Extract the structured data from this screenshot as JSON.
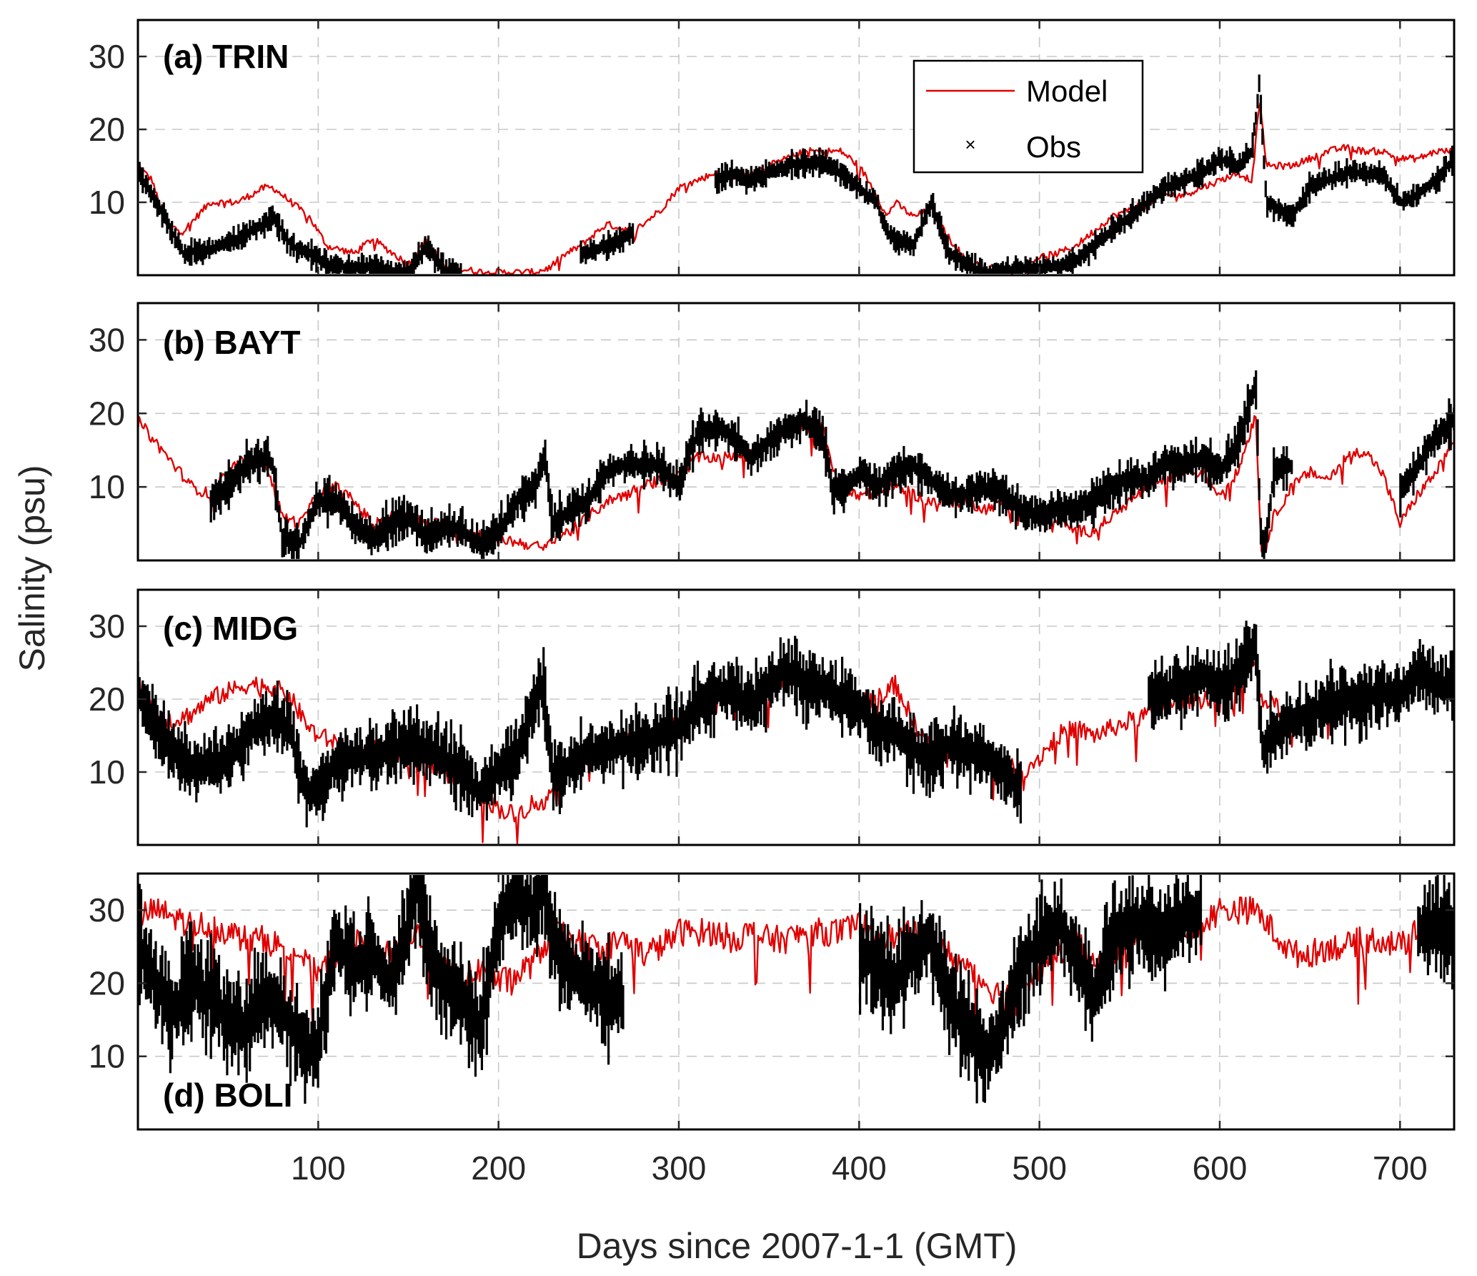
{
  "chart_data": [
    {
      "type": "line",
      "title": "(a) TRIN",
      "x": [
        0,
        8,
        15,
        25,
        40,
        55,
        70,
        75,
        85,
        95,
        105,
        120,
        130,
        150,
        160,
        170,
        180,
        190,
        200,
        210,
        220,
        228,
        235,
        245,
        260,
        275,
        290,
        300,
        310,
        320,
        330,
        340,
        350,
        360,
        370,
        380,
        390,
        400,
        410,
        415,
        420,
        430,
        440,
        450,
        460,
        470,
        480,
        490,
        500,
        510,
        520,
        530,
        540,
        550,
        560,
        570,
        580,
        590,
        600,
        610,
        618,
        622,
        626,
        640,
        650,
        660,
        670,
        680,
        690,
        700,
        710,
        720,
        730
      ],
      "series": [
        {
          "name": "Model",
          "color": "#e00000",
          "values": [
            15,
            13,
            7,
            6,
            10,
            10,
            12,
            12,
            10,
            8,
            4,
            3,
            5,
            1.5,
            5,
            1,
            0.8,
            0.5,
            0.4,
            0.4,
            0.4,
            1,
            2.5,
            4,
            7,
            6,
            9,
            12,
            13,
            14,
            13.5,
            14,
            15,
            16,
            17,
            17,
            17,
            15,
            11,
            8,
            10,
            8,
            9,
            5,
            2,
            1,
            1,
            1,
            2.5,
            3,
            4,
            6,
            8,
            9,
            10,
            11,
            11,
            12,
            13,
            14,
            13,
            24,
            15,
            15,
            16,
            17,
            17.5,
            17,
            17,
            16,
            16,
            17,
            17
          ]
        },
        {
          "name": "Obs",
          "color": "#000000",
          "values": [
            14,
            11,
            8,
            3,
            3.5,
            5,
            7,
            8,
            4,
            3,
            1.5,
            1,
            1,
            0.4,
            4,
            0.5,
            0.3,
            null,
            null,
            null,
            null,
            null,
            null,
            3,
            4,
            6,
            null,
            null,
            null,
            13,
            14,
            13,
            14,
            15,
            15.5,
            15.5,
            14,
            12,
            10,
            6,
            5,
            4,
            10,
            3,
            1.5,
            0.5,
            0.5,
            0.8,
            1,
            1.2,
            2,
            4,
            6,
            8,
            10,
            12,
            13,
            14,
            16,
            15,
            17,
            26,
            10,
            8,
            12,
            13,
            14,
            14,
            14,
            10,
            11,
            13,
            16
          ]
        }
      ],
      "xlim": [
        0,
        730
      ],
      "ylim": [
        0,
        35
      ],
      "xticks": [
        100,
        200,
        300,
        400,
        500,
        600,
        700
      ],
      "yticks": [
        10,
        20,
        30
      ],
      "legend": {
        "entries": [
          "Model",
          "Obs"
        ],
        "position": "top-center"
      }
    },
    {
      "type": "line",
      "title": "(b) BAYT",
      "x": [
        0,
        10,
        20,
        30,
        40,
        50,
        60,
        70,
        75,
        80,
        90,
        100,
        110,
        120,
        130,
        140,
        150,
        160,
        170,
        180,
        190,
        200,
        210,
        220,
        226,
        230,
        240,
        250,
        260,
        270,
        280,
        290,
        300,
        305,
        310,
        320,
        330,
        340,
        350,
        360,
        370,
        380,
        385,
        390,
        400,
        410,
        420,
        430,
        440,
        450,
        460,
        470,
        480,
        490,
        500,
        510,
        520,
        530,
        540,
        550,
        560,
        570,
        580,
        590,
        600,
        610,
        615,
        620,
        623,
        626,
        630,
        640,
        650,
        660,
        670,
        680,
        690,
        700,
        710,
        720,
        730
      ],
      "series": [
        {
          "name": "Model",
          "color": "#e00000",
          "values": [
            19,
            16,
            13,
            10,
            9,
            12,
            14,
            14,
            10,
            6,
            5,
            9,
            10,
            8,
            5,
            6,
            6,
            5,
            5,
            4,
            3.5,
            3,
            2.5,
            2,
            1.5,
            3,
            4,
            6,
            8,
            9,
            10,
            11,
            12,
            13,
            14,
            14,
            14,
            15,
            16,
            17,
            18,
            18,
            13,
            10,
            9,
            9,
            10,
            9,
            8,
            8,
            8,
            7,
            8,
            7,
            6,
            5.5,
            4,
            4,
            6,
            8,
            10,
            11,
            12,
            12,
            9,
            12,
            16,
            20,
            1,
            2,
            6,
            10,
            12,
            11,
            14,
            15,
            12,
            5,
            9,
            12,
            16
          ]
        },
        {
          "name": "Obs",
          "color": "#000000",
          "values": [
            null,
            null,
            null,
            null,
            8,
            10,
            13,
            14,
            13,
            3,
            2.5,
            8,
            8,
            5,
            3,
            5,
            6,
            3,
            5,
            4,
            2,
            4,
            8,
            10,
            14,
            5,
            7,
            8,
            12,
            13,
            13,
            13,
            10,
            14,
            17,
            18,
            17,
            14,
            16,
            18,
            19,
            17,
            10,
            9,
            12,
            10,
            12,
            13,
            11,
            9,
            9,
            10,
            9,
            7,
            6,
            7,
            7,
            8,
            10,
            11,
            11,
            13,
            13,
            14,
            12,
            16,
            20,
            24,
            2,
            3,
            12,
            13,
            null,
            null,
            null,
            null,
            null,
            9,
            13,
            17,
            19
          ]
        }
      ],
      "xlim": [
        0,
        730
      ],
      "ylim": [
        0,
        35
      ],
      "xticks": [
        100,
        200,
        300,
        400,
        500,
        600,
        700
      ],
      "yticks": [
        10,
        20,
        30
      ]
    },
    {
      "type": "line",
      "title": "(c) MIDG",
      "x": [
        0,
        10,
        20,
        30,
        40,
        50,
        60,
        70,
        80,
        85,
        90,
        95,
        100,
        110,
        120,
        130,
        140,
        150,
        160,
        170,
        180,
        190,
        200,
        210,
        220,
        225,
        230,
        240,
        250,
        260,
        270,
        280,
        290,
        300,
        310,
        320,
        330,
        340,
        350,
        360,
        370,
        380,
        390,
        400,
        410,
        420,
        430,
        440,
        450,
        460,
        470,
        480,
        490,
        500,
        510,
        520,
        530,
        540,
        550,
        560,
        570,
        580,
        590,
        600,
        610,
        620,
        624,
        628,
        640,
        650,
        660,
        670,
        680,
        690,
        700,
        710,
        720,
        730
      ],
      "series": [
        {
          "name": "Model",
          "color": "#e00000",
          "values": [
            22,
            18,
            17,
            18,
            20,
            21,
            22,
            22,
            21,
            20,
            18,
            16,
            15,
            14,
            12,
            13,
            13,
            12,
            11,
            10,
            9,
            7,
            5,
            4,
            6,
            5,
            9,
            11,
            12,
            13,
            14,
            14,
            15,
            17,
            19,
            20,
            21,
            20,
            21,
            23,
            22,
            22,
            21,
            20,
            20,
            22,
            17,
            13,
            14,
            13,
            12,
            11,
            10,
            12,
            15,
            16,
            15,
            16,
            17,
            18,
            19,
            20,
            20,
            21,
            22,
            25,
            18,
            20,
            16,
            19,
            20,
            20,
            20,
            20,
            22,
            24,
            22,
            21
          ]
        },
        {
          "name": "Obs",
          "color": "#000000",
          "values": [
            21,
            16,
            13,
            11,
            11,
            12,
            15,
            17,
            17,
            16,
            9,
            7,
            8,
            11,
            12,
            12,
            13,
            14,
            13,
            12,
            10,
            7,
            10,
            12,
            20,
            22,
            9,
            11,
            13,
            13,
            14,
            14,
            15,
            16,
            19,
            21,
            21,
            19,
            22,
            24,
            22,
            22,
            20,
            19,
            16,
            16,
            13,
            12,
            14,
            13,
            12,
            10,
            7,
            null,
            null,
            null,
            null,
            null,
            null,
            20,
            21,
            22,
            23,
            22,
            23,
            28,
            12,
            15,
            17,
            18,
            19,
            20,
            20,
            21,
            21,
            24,
            22,
            22
          ]
        }
      ],
      "xlim": [
        0,
        730
      ],
      "ylim": [
        0,
        35
      ],
      "xticks": [
        100,
        200,
        300,
        400,
        500,
        600,
        700
      ],
      "yticks": [
        10,
        20,
        30
      ]
    },
    {
      "type": "line",
      "title": "(d) BOLI",
      "x": [
        0,
        10,
        20,
        30,
        40,
        50,
        60,
        70,
        80,
        90,
        95,
        100,
        110,
        120,
        130,
        140,
        150,
        155,
        160,
        170,
        180,
        190,
        200,
        210,
        220,
        225,
        230,
        240,
        250,
        260,
        270,
        280,
        290,
        300,
        310,
        320,
        330,
        340,
        350,
        360,
        370,
        380,
        390,
        400,
        410,
        420,
        430,
        440,
        450,
        460,
        470,
        480,
        490,
        500,
        510,
        520,
        530,
        540,
        550,
        560,
        570,
        580,
        590,
        600,
        610,
        620,
        630,
        640,
        650,
        660,
        670,
        680,
        690,
        700,
        710,
        720,
        730
      ],
      "series": [
        {
          "name": "Model",
          "color": "#e00000",
          "values": [
            29,
            30,
            29,
            28,
            28,
            27,
            26,
            26,
            25,
            24,
            22,
            22,
            24,
            26,
            23,
            24,
            25,
            27,
            26,
            22,
            20,
            22,
            20,
            21,
            23,
            25,
            27,
            26,
            25,
            25,
            26,
            24,
            25,
            27,
            27,
            27,
            26,
            27,
            26,
            26,
            27,
            27,
            27,
            28,
            27,
            26,
            27,
            25,
            24,
            22,
            20,
            18,
            20,
            22,
            24,
            26,
            22,
            24,
            26,
            26,
            27,
            27,
            28,
            30,
            30,
            30,
            27,
            24,
            24,
            25,
            25,
            26,
            26,
            25,
            27,
            28,
            27
          ]
        },
        {
          "name": "Obs",
          "color": "#000000",
          "values": [
            26,
            20,
            16,
            20,
            18,
            15,
            14,
            18,
            16,
            12,
            10,
            12,
            26,
            22,
            24,
            20,
            28,
            34,
            26,
            20,
            18,
            14,
            28,
            32,
            30,
            33,
            26,
            22,
            20,
            18,
            18,
            null,
            null,
            null,
            null,
            null,
            null,
            null,
            null,
            null,
            null,
            null,
            null,
            24,
            22,
            20,
            24,
            26,
            18,
            14,
            10,
            14,
            22,
            26,
            28,
            24,
            18,
            26,
            28,
            28,
            27,
            29,
            30,
            null,
            null,
            null,
            null,
            null,
            null,
            null,
            null,
            null,
            null,
            null,
            27,
            28,
            27
          ]
        }
      ],
      "xlim": [
        0,
        730
      ],
      "ylim": [
        0,
        35
      ],
      "xticks": [
        100,
        200,
        300,
        400,
        500,
        600,
        700
      ],
      "yticks": [
        10,
        20,
        30
      ]
    }
  ],
  "axes": {
    "xlabel": "Days since 2007-1-1 (GMT)",
    "ylabel": "Salinity (psu)"
  },
  "legend": {
    "model_label": "Model",
    "obs_label": "Obs",
    "model_color": "#e00000",
    "obs_color": "#000000"
  }
}
